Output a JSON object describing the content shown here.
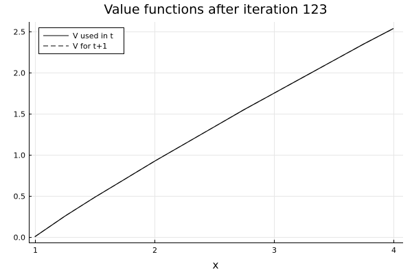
{
  "chart_data": {
    "type": "line",
    "title": "Value functions after iteration 123",
    "xlabel": "x",
    "ylabel": "",
    "xlim": [
      0.95,
      4.08
    ],
    "ylim": [
      -0.07,
      2.62
    ],
    "xticks": [
      1,
      2,
      3,
      4
    ],
    "yticks": [
      0.0,
      0.5,
      1.0,
      1.5,
      2.0,
      2.5
    ],
    "xtick_labels": [
      "1",
      "2",
      "3",
      "4"
    ],
    "ytick_labels": [
      "0.0",
      "0.5",
      "1.0",
      "1.5",
      "2.0",
      "2.5"
    ],
    "grid": true,
    "legend_position": "top-left",
    "series": [
      {
        "name": "V used in t",
        "style": "solid",
        "color": "#000000",
        "x": [
          1.0,
          1.25,
          1.5,
          1.75,
          2.0,
          2.25,
          2.5,
          2.75,
          3.0,
          3.25,
          3.5,
          3.75,
          4.0
        ],
        "y": [
          0.0,
          0.25,
          0.48,
          0.7,
          0.92,
          1.13,
          1.34,
          1.55,
          1.75,
          1.95,
          2.15,
          2.35,
          2.54
        ]
      },
      {
        "name": "V for t+1",
        "style": "dashed",
        "color": "#000000",
        "x": [
          1.0,
          1.25,
          1.5,
          1.75,
          2.0,
          2.25,
          2.5,
          2.75,
          3.0,
          3.25,
          3.5,
          3.75,
          4.0
        ],
        "y": [
          0.0,
          0.25,
          0.48,
          0.7,
          0.92,
          1.13,
          1.34,
          1.55,
          1.75,
          1.95,
          2.15,
          2.35,
          2.54
        ]
      }
    ]
  }
}
